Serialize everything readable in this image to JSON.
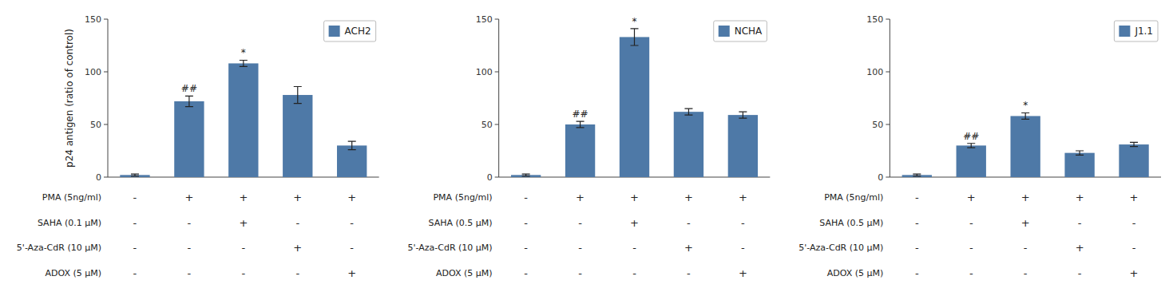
{
  "chart_data": [
    {
      "type": "bar",
      "categories": [
        null,
        null,
        null,
        null,
        null
      ],
      "series": [
        {
          "name": "ACH2",
          "values": [
            2,
            72,
            108,
            78,
            30
          ],
          "errors": [
            1,
            5,
            3,
            8,
            4
          ]
        }
      ],
      "ylabel": "p24 antigen (ratio of control)",
      "ylim": [
        0,
        150
      ],
      "yticks": [
        0,
        50,
        100,
        150
      ],
      "legend": "upper right",
      "annotations": [
        {
          "index": 1,
          "text": "##"
        },
        {
          "index": 2,
          "text": "*"
        }
      ],
      "treatment_table": {
        "row_labels": [
          "PMA (5ng/ml)",
          "SAHA (0.1 μM)",
          "5'-Aza-CdR (10 μM)",
          "ADOX (5 μM)"
        ],
        "cells": [
          [
            "-",
            "+",
            "+",
            "+",
            "+"
          ],
          [
            "-",
            "-",
            "+",
            "-",
            "-"
          ],
          [
            "-",
            "-",
            "-",
            "+",
            "-"
          ],
          [
            "-",
            "-",
            "-",
            "-",
            "+"
          ]
        ]
      }
    },
    {
      "type": "bar",
      "categories": [
        null,
        null,
        null,
        null,
        null
      ],
      "series": [
        {
          "name": "NCHA",
          "values": [
            2,
            50,
            133,
            62,
            59
          ],
          "errors": [
            1,
            3,
            8,
            3,
            3
          ]
        }
      ],
      "ylim": [
        0,
        150
      ],
      "yticks": [
        0,
        50,
        100,
        150
      ],
      "legend": "upper right",
      "annotations": [
        {
          "index": 1,
          "text": "##"
        },
        {
          "index": 2,
          "text": "*"
        }
      ],
      "treatment_table": {
        "row_labels": [
          "PMA (5ng/ml)",
          "SAHA (0.5 μM)",
          "5'-Aza-CdR (10 μM)",
          "ADOX (5 μM)"
        ],
        "cells": [
          [
            "-",
            "+",
            "+",
            "+",
            "+"
          ],
          [
            "-",
            "-",
            "+",
            "-",
            "-"
          ],
          [
            "-",
            "-",
            "-",
            "+",
            "-"
          ],
          [
            "-",
            "-",
            "-",
            "-",
            "+"
          ]
        ]
      }
    },
    {
      "type": "bar",
      "categories": [
        null,
        null,
        null,
        null,
        null
      ],
      "series": [
        {
          "name": "J1.1",
          "values": [
            2,
            30,
            58,
            23,
            31
          ],
          "errors": [
            1,
            2,
            3,
            2,
            2
          ]
        }
      ],
      "ylim": [
        0,
        150
      ],
      "yticks": [
        0,
        50,
        100,
        150
      ],
      "legend": "upper right",
      "annotations": [
        {
          "index": 1,
          "text": "##"
        },
        {
          "index": 2,
          "text": "*"
        }
      ],
      "treatment_table": {
        "row_labels": [
          "PMA (5ng/ml)",
          "SAHA (0.5 μM)",
          "5'-Aza-CdR (10 μM)",
          "ADOX (5 μM)"
        ],
        "cells": [
          [
            "-",
            "+",
            "+",
            "+",
            "+"
          ],
          [
            "-",
            "-",
            "+",
            "-",
            "-"
          ],
          [
            "-",
            "-",
            "-",
            "+",
            "-"
          ],
          [
            "-",
            "-",
            "-",
            "-",
            "+"
          ]
        ]
      }
    }
  ]
}
